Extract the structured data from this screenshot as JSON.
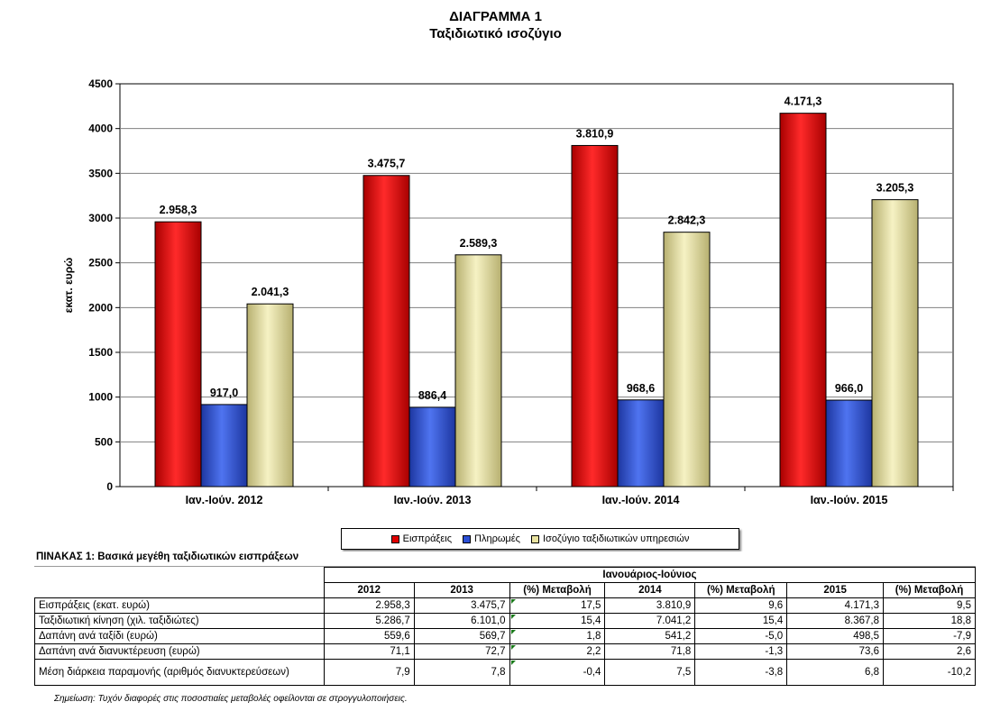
{
  "chart_data": {
    "type": "bar",
    "title": "ΔΙΑΓΡΑΜΜΑ 1",
    "subtitle": "Ταξιδιωτικό ισοζύγιο",
    "xlabel": "",
    "ylabel": "εκατ. ευρώ",
    "ylim": [
      0,
      4500
    ],
    "yticks": [
      0,
      500,
      1000,
      1500,
      2000,
      2500,
      3000,
      3500,
      4000,
      4500
    ],
    "grid": true,
    "legend_position": "bottom",
    "categories": [
      "Ιαν.-Ιούν. 2012",
      "Ιαν.-Ιούν. 2013",
      "Ιαν.-Ιούν. 2014",
      "Ιαν.-Ιούν. 2015"
    ],
    "series": [
      {
        "name": "Εισπράξεις",
        "color": "#e00000",
        "values": [
          2958.3,
          3475.7,
          3810.9,
          4171.3
        ],
        "labels": [
          "2.958,3",
          "3.475,7",
          "3.810,9",
          "4.171,3"
        ]
      },
      {
        "name": "Πληρωμές",
        "color": "#2b4fd6",
        "values": [
          917.0,
          886.4,
          968.6,
          966.0
        ],
        "labels": [
          "917,0",
          "886,4",
          "968,6",
          "966,0"
        ]
      },
      {
        "name": "Ισοζύγιο ταξιδιωτικών υπηρεσιών",
        "color": "#e9e3a0",
        "values": [
          2041.3,
          2589.3,
          2842.3,
          3205.3
        ],
        "labels": [
          "2.041,3",
          "2.589,3",
          "2.842,3",
          "3.205,3"
        ]
      }
    ]
  },
  "table": {
    "caption": "ΠΙΝΑΚΑΣ 1: Βασικά μεγέθη ταξιδιωτικών εισπράξεων",
    "group_header": "Ιανουάριος-Ιούνιος",
    "columns": [
      "2012",
      "2013",
      "(%) Μεταβολή",
      "2014",
      "(%) Μεταβολή",
      "2015",
      "(%) Μεταβολή"
    ],
    "rows": [
      {
        "label": "Εισπράξεις (εκατ. ευρώ)",
        "cells": [
          "2.958,3",
          "3.475,7",
          "17,5",
          "3.810,9",
          "9,6",
          "4.171,3",
          "9,5"
        ]
      },
      {
        "label": "Ταξιδιωτική κίνηση (χιλ. ταξιδιώτες)",
        "cells": [
          "5.286,7",
          "6.101,0",
          "15,4",
          "7.041,2",
          "15,4",
          "8.367,8",
          "18,8"
        ]
      },
      {
        "label": "Δαπάνη ανά ταξίδι (ευρώ)",
        "cells": [
          "559,6",
          "569,7",
          "1,8",
          "541,2",
          "-5,0",
          "498,5",
          "-7,9"
        ]
      },
      {
        "label": "Δαπάνη ανά διανυκτέρευση (ευρώ)",
        "cells": [
          "71,1",
          "72,7",
          "2,2",
          "71,8",
          "-1,3",
          "73,6",
          "2,6"
        ]
      },
      {
        "label": "Μέση διάρκεια παραμονής (αριθμός διανυκτερεύσεων)",
        "cells": [
          "7,9",
          "7,8",
          "-0,4",
          "7,5",
          "-3,8",
          "6,8",
          "-10,2"
        ]
      }
    ]
  },
  "note": "Σημείωση: Τυχόν διαφορές στις ποσοστιαίες μεταβολές οφείλονται σε στρογγυλοποιήσεις."
}
